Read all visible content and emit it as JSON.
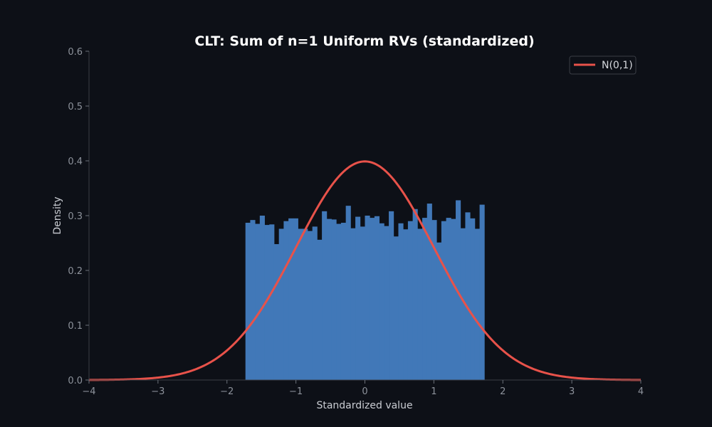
{
  "chart_data": {
    "type": "bar",
    "title": "CLT: Sum of n=1 Uniform RVs (standardized)",
    "xlabel": "Standardized value",
    "ylabel": "Density",
    "xlim": [
      -4,
      4
    ],
    "ylim": [
      0,
      0.6
    ],
    "x_ticks": [
      "−4",
      "−3",
      "−2",
      "−1",
      "0",
      "1",
      "2",
      "3",
      "4"
    ],
    "x_tick_values": [
      -4,
      -3,
      -2,
      -1,
      0,
      1,
      2,
      3,
      4
    ],
    "y_ticks": [
      "0.0",
      "0.1",
      "0.2",
      "0.3",
      "0.4",
      "0.5",
      "0.6"
    ],
    "y_tick_values": [
      0,
      0.1,
      0.2,
      0.3,
      0.4,
      0.5,
      0.6
    ],
    "grid": false,
    "legend_position": "top-right",
    "histogram": {
      "bin_start": -1.732,
      "bin_end": 1.732,
      "bin_count": 50,
      "color": "#4178b8",
      "densities": [
        0.287,
        0.292,
        0.285,
        0.3,
        0.283,
        0.284,
        0.248,
        0.276,
        0.29,
        0.295,
        0.295,
        0.276,
        0.276,
        0.272,
        0.28,
        0.256,
        0.308,
        0.294,
        0.293,
        0.285,
        0.287,
        0.318,
        0.277,
        0.298,
        0.28,
        0.3,
        0.296,
        0.299,
        0.286,
        0.281,
        0.308,
        0.262,
        0.286,
        0.275,
        0.29,
        0.312,
        0.276,
        0.296,
        0.322,
        0.292,
        0.251,
        0.29,
        0.296,
        0.294,
        0.328,
        0.277,
        0.306,
        0.295,
        0.276,
        0.32
      ]
    },
    "series": [
      {
        "name": "N(0,1)",
        "type": "line",
        "color": "#e8524a",
        "function": "normal_pdf",
        "mean": 0,
        "sd": 1
      }
    ]
  },
  "colors": {
    "background": "#0d1017",
    "axis": "#3a3e46"
  }
}
